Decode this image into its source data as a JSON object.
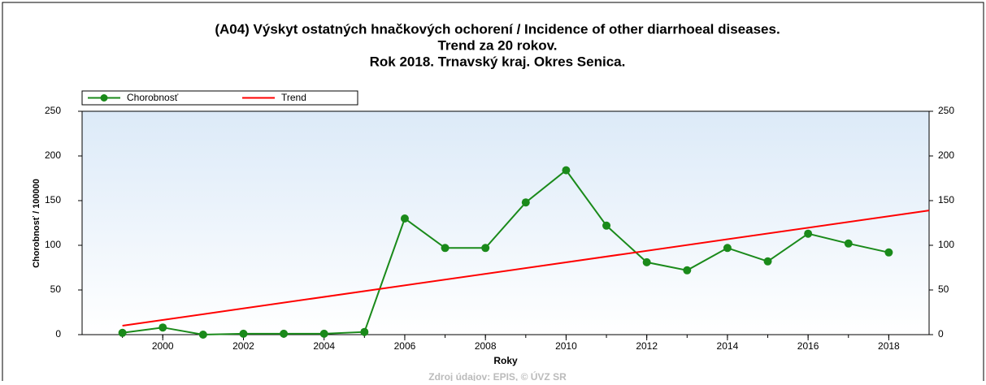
{
  "chart_data": {
    "type": "line",
    "title": [
      "(A04) Výskyt ostatných hnačkových ochorení / Incidence of other diarrhoeal diseases.",
      "Trend za 20 rokov.",
      "Rok 2018. Trnavský kraj. Okres Senica."
    ],
    "x_label": "Roky",
    "y_label": "Chorobnosť / 100000",
    "source": "Zdroj údajov: EPIS, © ÚVZ SR",
    "x": [
      1999,
      2000,
      2001,
      2002,
      2003,
      2004,
      2005,
      2006,
      2007,
      2008,
      2009,
      2010,
      2011,
      2012,
      2013,
      2014,
      2015,
      2016,
      2017,
      2018
    ],
    "series": [
      {
        "name": "Chorobnosť",
        "color": "#1a8a1a",
        "values": [
          2,
          8,
          0,
          1,
          1,
          1,
          3,
          130,
          97,
          97,
          148,
          184,
          122,
          81,
          72,
          97,
          82,
          113,
          102,
          92
        ]
      },
      {
        "name": "Trend",
        "color": "#ff0000",
        "x": [
          1999,
          2019
        ],
        "values": [
          10,
          139
        ]
      }
    ],
    "xlim": [
      1998,
      2019
    ],
    "xticks": [
      2000,
      2002,
      2004,
      2006,
      2008,
      2010,
      2012,
      2014,
      2016,
      2018
    ],
    "ylim": [
      0,
      250
    ],
    "yticks": [
      0,
      50,
      100,
      150,
      200,
      250
    ],
    "y2lim": [
      0,
      250
    ],
    "y2ticks": [
      0,
      50,
      100,
      150,
      200,
      250
    ],
    "legend": "top-left"
  }
}
